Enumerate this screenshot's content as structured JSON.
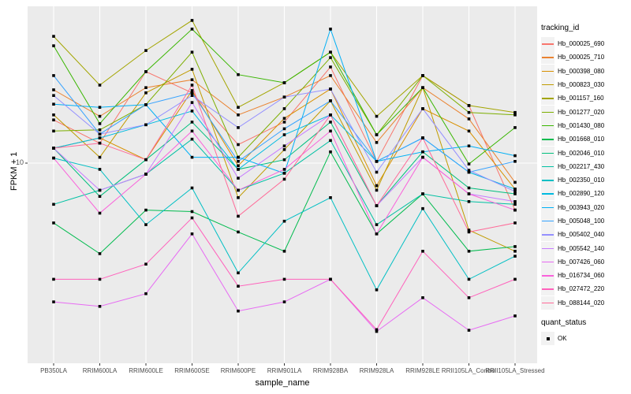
{
  "chart_data": {
    "type": "line",
    "title": "",
    "xlabel": "sample_name",
    "ylabel": "FPKM + 1",
    "y_scale": "log10",
    "y_tick_labels": [
      "10"
    ],
    "ylim_approx": [
      1.0,
      62
    ],
    "grid": true,
    "panel_bg": "#EBEBEB",
    "gridline_color": "#FFFFFF",
    "tick_label_color": "#4d4d4d",
    "point_shape": "filled-square",
    "point_color": "#000000",
    "categories": [
      "PB350LA",
      "RRIM600LA",
      "RRIM600LE",
      "RRIM600SE",
      "RRIM600PE",
      "RRIM901LA",
      "RRIM928BA",
      "RRIM928LA",
      "RRIM928LE",
      "RRII105LA_Control",
      "RRII105LA_Stressed"
    ],
    "series": [
      {
        "name": "Hb_000025_690",
        "color": "#F8766D",
        "values": [
          16.5,
          12.6,
          28.9,
          22.6,
          12.4,
          16.1,
          30.5,
          10.2,
          27.6,
          19.5,
          5.8
        ]
      },
      {
        "name": "Hb_000025_710",
        "color": "#EA8331",
        "values": [
          23.4,
          17.2,
          24.0,
          26.3,
          17.5,
          21.5,
          27.6,
          12.7,
          24.0,
          16.7,
          8.0
        ]
      },
      {
        "name": "Hb_000398_080",
        "color": "#D89000",
        "values": [
          11.9,
          13.4,
          10.4,
          23.2,
          9.7,
          16.8,
          23.6,
          7.7,
          18.8,
          14.5,
          7.4
        ]
      },
      {
        "name": "Hb_000823_030",
        "color": "#C09B00",
        "values": [
          17.5,
          10.7,
          22.6,
          29.7,
          6.7,
          11.7,
          20.6,
          7.3,
          24.0,
          4.6,
          3.6
        ]
      },
      {
        "name": "Hb_001157_160",
        "color": "#A3A500",
        "values": [
          43.5,
          24.7,
          36.9,
          52.3,
          19.1,
          25.4,
          36.2,
          17.2,
          27.6,
          19.5,
          18.0
        ]
      },
      {
        "name": "Hb_001277_020",
        "color": "#7CAE00",
        "values": [
          14.5,
          14.7,
          19.7,
          36.2,
          10.7,
          18.8,
          34.0,
          13.9,
          27.6,
          18.0,
          17.5
        ]
      },
      {
        "name": "Hb_001430_080",
        "color": "#39B600",
        "values": [
          39.0,
          15.8,
          28.9,
          47.3,
          27.9,
          25.4,
          36.2,
          13.9,
          24.0,
          9.9,
          15.1
        ]
      },
      {
        "name": "Hb_001668_010",
        "color": "#00BB4E",
        "values": [
          5.0,
          3.5,
          5.8,
          5.7,
          4.5,
          3.6,
          11.4,
          4.4,
          7.0,
          3.6,
          3.8
        ]
      },
      {
        "name": "Hb_002046_010",
        "color": "#00BF7D",
        "values": [
          11.9,
          6.8,
          10.4,
          16.1,
          9.3,
          10.4,
          16.1,
          6.1,
          11.4,
          7.5,
          7.0
        ]
      },
      {
        "name": "Hb_002217_430",
        "color": "#00C1A3",
        "values": [
          6.2,
          7.3,
          8.8,
          13.2,
          7.3,
          8.9,
          13.0,
          4.9,
          7.0,
          6.4,
          6.2
        ]
      },
      {
        "name": "Hb_002350_010",
        "color": "#00BFC4",
        "values": [
          10.6,
          9.3,
          4.9,
          7.5,
          2.8,
          5.1,
          6.7,
          2.3,
          5.9,
          2.6,
          3.4
        ]
      },
      {
        "name": "Hb_002890_120",
        "color": "#00BAE0",
        "values": [
          11.9,
          13.4,
          15.6,
          18.3,
          9.3,
          13.9,
          17.5,
          10.2,
          13.4,
          9.0,
          7.4
        ]
      },
      {
        "name": "Hb_003943_020",
        "color": "#00B0F6",
        "values": [
          19.8,
          19.1,
          19.7,
          10.7,
          10.7,
          8.9,
          47.3,
          10.2,
          11.4,
          12.2,
          10.9
        ]
      },
      {
        "name": "Hb_005048_100",
        "color": "#35A2FF",
        "values": [
          27.6,
          14.0,
          19.7,
          22.6,
          10.2,
          14.9,
          20.6,
          10.2,
          13.4,
          9.0,
          10.2
        ]
      },
      {
        "name": "Hb_005402_040",
        "color": "#9590FF",
        "values": [
          21.9,
          14.0,
          15.6,
          21.9,
          15.1,
          21.5,
          23.6,
          9.0,
          18.8,
          9.2,
          7.2
        ]
      },
      {
        "name": "Hb_005542_140",
        "color": "#C77CFF",
        "values": [
          11.9,
          7.3,
          8.8,
          20.2,
          8.4,
          12.2,
          17.5,
          6.1,
          10.7,
          7.0,
          6.4
        ]
      },
      {
        "name": "Hb_007426_060",
        "color": "#E76BF3",
        "values": [
          2.0,
          1.9,
          2.2,
          4.4,
          1.8,
          2.0,
          2.6,
          1.42,
          2.1,
          1.44,
          1.7
        ]
      },
      {
        "name": "Hb_016734_060",
        "color": "#FA62DB",
        "values": [
          10.6,
          5.6,
          8.8,
          14.5,
          7.3,
          9.3,
          14.5,
          4.4,
          10.7,
          7.0,
          5.8
        ]
      },
      {
        "name": "Hb_027472_220",
        "color": "#FF62BC",
        "values": [
          2.6,
          2.6,
          3.1,
          5.3,
          2.4,
          2.6,
          2.6,
          1.45,
          3.6,
          2.1,
          2.6
        ]
      },
      {
        "name": "Hb_088144_020",
        "color": "#FF6A98",
        "values": [
          11.9,
          12.6,
          10.4,
          24.7,
          5.4,
          8.3,
          17.5,
          6.1,
          13.4,
          4.5,
          5.0
        ]
      }
    ],
    "legend": {
      "color_title": "tracking_id",
      "shape_title": "quant_status",
      "shape_items": [
        {
          "label": "OK",
          "shape": "filled-square",
          "color": "#000000"
        }
      ],
      "position": "right"
    }
  },
  "axes": {
    "y_tick_label": "10",
    "y_title": "FPKM + 1",
    "x_title": "sample_name"
  }
}
